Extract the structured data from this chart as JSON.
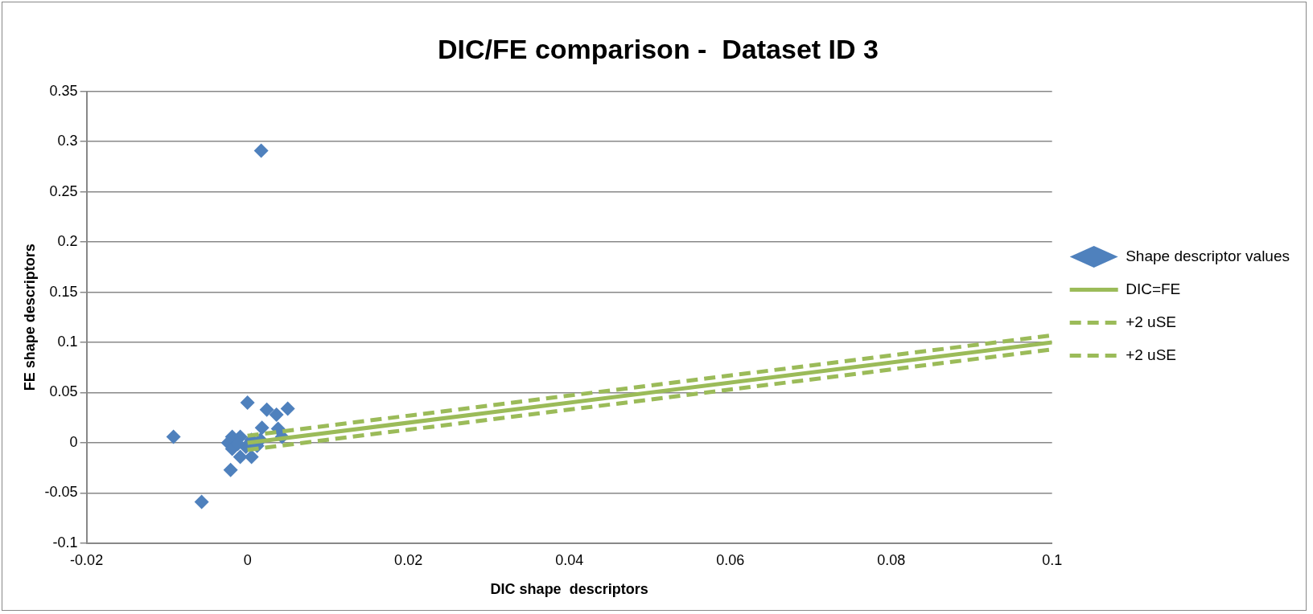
{
  "chart_data": {
    "type": "scatter",
    "title": "DIC/FE comparison -  Dataset ID 3",
    "xlabel": "DIC shape  descriptors",
    "ylabel": "FE shape descriptors",
    "xlim": [
      -0.02,
      0.1
    ],
    "xticks": [
      -0.02,
      0,
      0.02,
      0.04,
      0.06,
      0.08,
      0.1
    ],
    "ylim": [
      -0.1,
      0.35
    ],
    "yticks": [
      -0.1,
      -0.05,
      0,
      0.05,
      0.1,
      0.15,
      0.2,
      0.25,
      0.3,
      0.35
    ],
    "grid": "y",
    "legend": "right",
    "series": [
      {
        "name": "Shape descriptor values",
        "marker": "diamond",
        "color": "#4f81bd",
        "x": [
          0.0017,
          -0.0092,
          0,
          0.0024,
          0.0036,
          0.005,
          0.0018,
          0.0038,
          0.0043,
          -0.0021,
          -0.0057,
          -0.0019,
          -0.0024,
          -0.0019,
          -0.0009,
          -0.0009,
          0.0005,
          -0.0002,
          0.0005,
          0.0016,
          0.0012,
          -0.0012
        ],
        "values": [
          0.291,
          0.006,
          0.04,
          0.033,
          0.028,
          0.034,
          0.015,
          0.014,
          0.006,
          -0.027,
          -0.059,
          0.006,
          0,
          -0.006,
          0.006,
          -0.014,
          -0.014,
          -0.004,
          0.003,
          0.003,
          -0.003,
          -0.001
        ]
      },
      {
        "name": "DIC=FE",
        "type": "line",
        "line_style": "solid",
        "marker": "none",
        "color": "#9bbb59",
        "x": [
          0,
          0.1
        ],
        "values": [
          0,
          0.1
        ]
      },
      {
        "name": "+2 uSE",
        "type": "line",
        "line_style": "dashed",
        "marker": "none",
        "color": "#9bbb59",
        "x": [
          0,
          0.1
        ],
        "values": [
          0.007,
          0.107
        ]
      },
      {
        "name": "+2 uSE",
        "type": "line",
        "line_style": "dashed",
        "marker": "none",
        "color": "#9bbb59",
        "x": [
          0,
          0.1
        ],
        "values": [
          -0.007,
          0.093
        ]
      }
    ]
  }
}
